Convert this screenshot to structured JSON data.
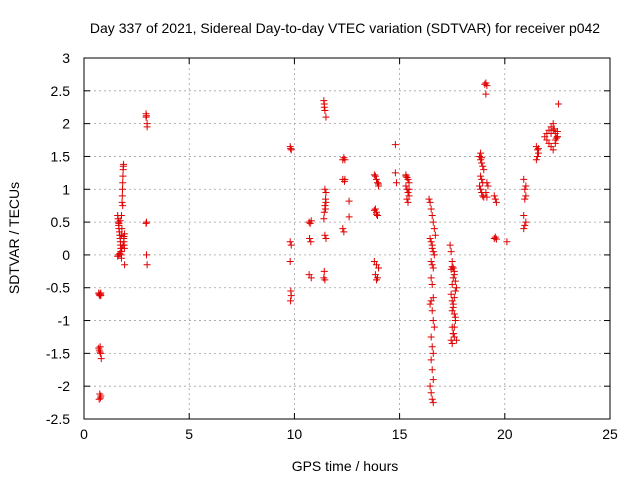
{
  "chart_data": {
    "type": "scatter",
    "title": "Day 337 of 2021, Sidereal Day-to-day VTEC variation (SDTVAR) for receiver p042",
    "xlabel": "GPS time / hours",
    "ylabel": "SDTVAR / TECUs",
    "xlim": [
      0,
      25
    ],
    "ylim": [
      -2.5,
      3
    ],
    "xticks": [
      0,
      5,
      10,
      15,
      20,
      25
    ],
    "xtick_labels": [
      "0",
      "5",
      "10",
      "15",
      "20",
      "25"
    ],
    "yticks": [
      -2.5,
      -2,
      -1.5,
      -1,
      -0.5,
      0,
      0.5,
      1,
      1.5,
      2,
      2.5,
      3
    ],
    "ytick_labels": [
      "-2.5",
      "-2",
      "-1.5",
      "-1",
      "-0.5",
      "0",
      "0.5",
      "1",
      "1.5",
      "2",
      "2.5",
      "3"
    ],
    "grid": true,
    "marker": "+",
    "color": "#e00000",
    "series": [
      {
        "name": "SDTVAR",
        "x": [
          0.7,
          0.72,
          0.75,
          0.78,
          0.8,
          0.7,
          0.73,
          0.76,
          0.79,
          0.82,
          0.75,
          0.78,
          0.8,
          0.72,
          0.77,
          0.8,
          1.6,
          1.62,
          1.64,
          1.65,
          1.66,
          1.68,
          1.7,
          1.72,
          1.73,
          1.74,
          1.75,
          1.76,
          1.77,
          1.78,
          1.79,
          1.8,
          1.81,
          1.82,
          1.83,
          1.84,
          1.85,
          1.86,
          1.87,
          1.88,
          1.89,
          1.9,
          1.91,
          1.92,
          1.93,
          1.6,
          1.65,
          1.7,
          1.75,
          1.8,
          1.85,
          1.9,
          1.93,
          1.66,
          1.72,
          1.78,
          1.84,
          2.95,
          2.95,
          2.97,
          3.0,
          3.0,
          2.97,
          2.95,
          2.97,
          3.0,
          9.8,
          9.82,
          9.85,
          9.8,
          9.85,
          9.8,
          9.83,
          9.85,
          9.82,
          10.7,
          10.75,
          10.8,
          10.72,
          10.78,
          10.7,
          10.8,
          11.4,
          11.42,
          11.45,
          11.5,
          11.5,
          11.48,
          11.45,
          11.42,
          11.4,
          11.45,
          11.5,
          11.42,
          11.4,
          11.45,
          11.48,
          11.5,
          11.45,
          11.42,
          12.3,
          12.35,
          12.4,
          12.3,
          12.38,
          12.35,
          12.3,
          12.4,
          12.6,
          12.6,
          13.8,
          13.85,
          13.9,
          13.95,
          14.0,
          13.85,
          13.9,
          13.95,
          13.8,
          13.9,
          14.0,
          13.85,
          13.95,
          13.9,
          13.8,
          13.9,
          14.0,
          14.8,
          14.8,
          14.85,
          15.3,
          15.35,
          15.4,
          15.45,
          15.3,
          15.35,
          15.4,
          15.45,
          15.35,
          15.4,
          15.3,
          15.45,
          16.4,
          16.45,
          16.5,
          16.55,
          16.6,
          16.65,
          16.7,
          16.45,
          16.5,
          16.55,
          16.6,
          16.65,
          16.5,
          16.55,
          16.6,
          16.5,
          16.55,
          16.6,
          16.45,
          16.55,
          16.6,
          16.65,
          16.5,
          16.55,
          16.6,
          16.5,
          16.55,
          16.6,
          16.45,
          16.5,
          16.55,
          16.6,
          16.5,
          16.55,
          17.4,
          17.45,
          17.5,
          17.55,
          17.6,
          17.65,
          17.7,
          17.45,
          17.5,
          17.55,
          17.6,
          17.65,
          17.5,
          17.55,
          17.6,
          17.45,
          17.5,
          17.55,
          17.6,
          17.65,
          17.5,
          17.55,
          17.6,
          17.65,
          17.5,
          17.55,
          17.6,
          17.45,
          17.5,
          17.7,
          18.8,
          18.85,
          18.9,
          18.95,
          19.0,
          18.85,
          18.9,
          18.95,
          18.8,
          18.85,
          18.9,
          18.95,
          19.0,
          18.85,
          18.9,
          19.05,
          19.1,
          19.15,
          19.1,
          19.15,
          19.2,
          19.1,
          19.15,
          19.5,
          19.55,
          19.6,
          19.5,
          19.55,
          19.6,
          20.1,
          20.9,
          20.95,
          21.0,
          20.95,
          20.9,
          21.0,
          20.95,
          20.9,
          21.0,
          21.5,
          21.55,
          21.6,
          21.55,
          21.5,
          21.6,
          21.9,
          22.0,
          22.1,
          22.2,
          22.3,
          22.4,
          22.5,
          22.0,
          22.1,
          22.2,
          22.3,
          22.4,
          22.5,
          22.2,
          22.3,
          22.4,
          22.5,
          22.35,
          22.45,
          22.55
        ],
        "y": [
          -0.58,
          -0.6,
          -0.62,
          -0.6,
          -0.58,
          -1.42,
          -1.45,
          -1.48,
          -1.5,
          -1.58,
          -2.12,
          -2.18,
          -2.15,
          -2.2,
          -1.4,
          -0.62,
          0.6,
          0.55,
          0.5,
          0.45,
          0.4,
          0.35,
          0.3,
          0.25,
          0.2,
          0.15,
          0.1,
          0.05,
          0.0,
          -0.05,
          0.3,
          0.4,
          0.8,
          0.9,
          1.0,
          1.1,
          1.2,
          1.3,
          1.35,
          1.38,
          0.25,
          0.2,
          0.15,
          0.1,
          -0.15,
          -0.02,
          0.0,
          0.02,
          0.05,
          0.1,
          0.15,
          0.28,
          0.32,
          0.48,
          0.52,
          0.6,
          0.75,
          2.15,
          2.1,
          2.12,
          2.0,
          1.95,
          0.5,
          0.48,
          0.0,
          -0.15,
          1.65,
          1.62,
          1.6,
          0.2,
          0.15,
          -0.1,
          -0.55,
          -0.62,
          -0.7,
          0.5,
          0.48,
          0.52,
          0.25,
          0.2,
          -0.3,
          -0.35,
          2.35,
          2.3,
          2.2,
          2.1,
          0.95,
          0.85,
          0.75,
          0.65,
          0.55,
          0.3,
          0.25,
          -0.25,
          -0.35,
          -0.38,
          0.7,
          0.8,
          1.0,
          2.25,
          1.45,
          1.48,
          1.45,
          1.15,
          1.12,
          0.35,
          0.4,
          1.15,
          0.82,
          0.58,
          1.22,
          1.2,
          1.15,
          1.1,
          1.05,
          0.7,
          0.65,
          0.6,
          -0.1,
          -0.15,
          -0.2,
          -0.3,
          -0.35,
          -0.38,
          0.68,
          0.62,
          1.08,
          1.68,
          1.25,
          1.1,
          1.2,
          1.18,
          1.15,
          1.1,
          1.05,
          1.0,
          0.95,
          0.9,
          0.85,
          0.8,
          1.22,
          1.0,
          0.85,
          0.8,
          0.7,
          0.6,
          0.5,
          0.4,
          0.3,
          0.25,
          0.2,
          0.1,
          0.05,
          0.0,
          -0.1,
          -0.15,
          -0.2,
          -0.35,
          -0.45,
          -0.65,
          -0.75,
          -0.85,
          -1.0,
          -1.1,
          -1.25,
          -1.4,
          -1.5,
          -1.6,
          -1.75,
          -1.9,
          -2.0,
          -2.1,
          -2.2,
          -2.25,
          -0.7,
          0.15,
          0.15,
          0.05,
          -0.1,
          -0.2,
          -0.3,
          -0.4,
          -0.5,
          -0.6,
          -0.7,
          -0.8,
          -0.9,
          -1.0,
          -1.1,
          -1.2,
          -1.25,
          -1.3,
          -1.35,
          -1.2,
          -1.1,
          -0.95,
          -0.85,
          -0.75,
          -0.65,
          -0.55,
          -0.45,
          -0.35,
          -0.25,
          -0.22,
          -0.18,
          -1.3,
          1.5,
          1.45,
          1.4,
          1.35,
          1.3,
          1.2,
          1.15,
          1.1,
          1.05,
          1.0,
          0.95,
          0.9,
          0.88,
          1.55,
          1.48,
          2.6,
          2.62,
          2.58,
          2.45,
          1.1,
          1.05,
          0.95,
          0.88,
          0.9,
          0.85,
          0.8,
          0.25,
          0.27,
          0.24,
          0.2,
          1.15,
          1.0,
          0.9,
          0.85,
          0.6,
          0.5,
          0.45,
          0.4,
          1.05,
          1.65,
          1.6,
          1.55,
          1.5,
          1.45,
          1.62,
          1.8,
          1.85,
          1.9,
          1.95,
          2.0,
          1.85,
          1.8,
          1.75,
          1.7,
          1.65,
          1.6,
          1.75,
          1.8,
          1.85,
          1.9,
          1.7,
          1.88,
          1.92,
          1.78,
          2.3
        ]
      }
    ]
  }
}
